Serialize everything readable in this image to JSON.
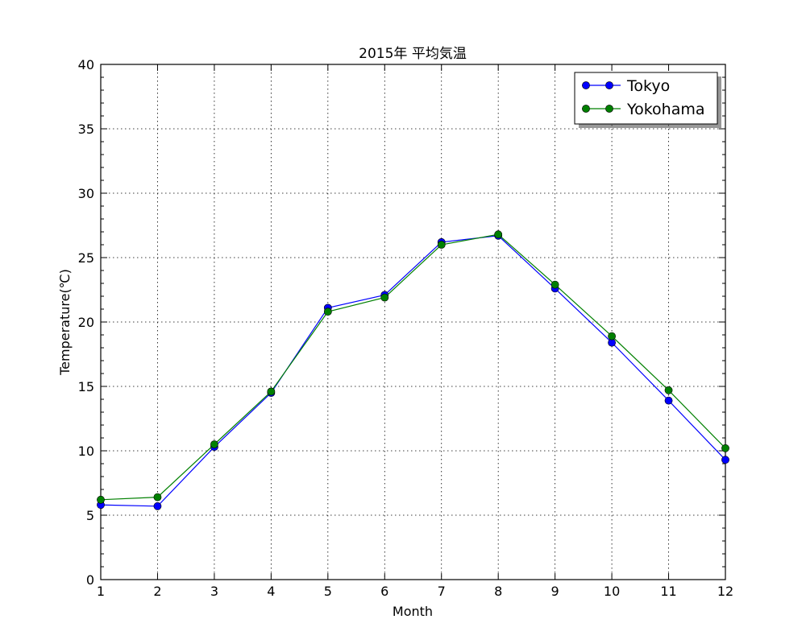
{
  "chart_data": {
    "type": "line",
    "title": "2015年 平均気温",
    "xlabel": "Month",
    "ylabel": "Temperature(℃)",
    "x": [
      1,
      2,
      3,
      4,
      5,
      6,
      7,
      8,
      9,
      10,
      11,
      12
    ],
    "xlim": [
      1,
      12
    ],
    "ylim": [
      0,
      40
    ],
    "xticks": [
      "1",
      "2",
      "3",
      "4",
      "5",
      "6",
      "7",
      "8",
      "9",
      "10",
      "11",
      "12"
    ],
    "yticks": [
      "0",
      "5",
      "10",
      "15",
      "20",
      "25",
      "30",
      "35",
      "40"
    ],
    "grid": true,
    "legend_position": "top-right",
    "series": [
      {
        "name": "Tokyo",
        "color": "#0000ff",
        "values": [
          5.8,
          5.7,
          10.3,
          14.5,
          21.1,
          22.1,
          26.2,
          26.7,
          22.6,
          18.4,
          13.9,
          9.3
        ]
      },
      {
        "name": "Yokohama",
        "color": "#008000",
        "values": [
          6.2,
          6.4,
          10.5,
          14.6,
          20.8,
          21.9,
          26.0,
          26.8,
          22.9,
          18.9,
          14.7,
          10.2
        ]
      }
    ]
  }
}
